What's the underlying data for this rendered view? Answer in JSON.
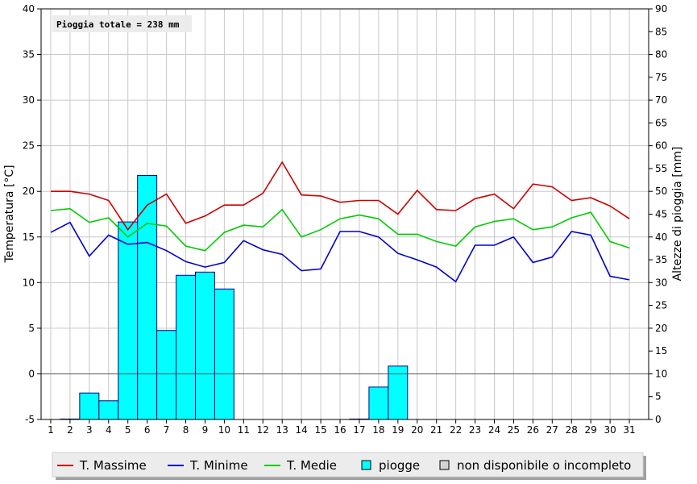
{
  "chart_data": {
    "type": "bar",
    "annotation": "Pioggia totale = 238 mm",
    "left_axis": {
      "label": "Temperatura [°C]",
      "range": [
        -5,
        40
      ],
      "ticks": [
        -5,
        0,
        5,
        10,
        15,
        20,
        25,
        30,
        35,
        40
      ]
    },
    "right_axis": {
      "label": "Altezze di pioggia [mm]",
      "range": [
        0,
        90
      ],
      "ticks": [
        0,
        5,
        10,
        15,
        20,
        25,
        30,
        35,
        40,
        45,
        50,
        55,
        60,
        65,
        70,
        75,
        80,
        85,
        90
      ]
    },
    "x": [
      1,
      2,
      3,
      4,
      5,
      6,
      7,
      8,
      9,
      10,
      11,
      12,
      13,
      14,
      15,
      16,
      17,
      18,
      19,
      20,
      21,
      22,
      23,
      24,
      25,
      26,
      27,
      28,
      29,
      30,
      31
    ],
    "grid": true,
    "legend_position": "bottom",
    "series": [
      {
        "name": "T. Massime",
        "type": "line",
        "axis": "left",
        "color": "#cc0000",
        "values": [
          20.0,
          20.0,
          19.7,
          19.0,
          15.8,
          18.5,
          19.7,
          16.5,
          17.3,
          18.5,
          18.5,
          19.8,
          23.2,
          19.6,
          19.5,
          18.8,
          19.0,
          19.0,
          17.5,
          20.1,
          18.0,
          17.9,
          19.2,
          19.7,
          18.1,
          20.8,
          20.5,
          19.0,
          19.3,
          18.4,
          17.0
        ]
      },
      {
        "name": "T. Minime",
        "type": "line",
        "axis": "left",
        "color": "#0000cc",
        "values": [
          15.5,
          16.6,
          12.9,
          15.2,
          14.2,
          14.4,
          13.5,
          12.3,
          11.7,
          12.2,
          14.6,
          13.6,
          13.1,
          11.3,
          11.5,
          15.6,
          15.6,
          15.0,
          13.2,
          12.5,
          11.7,
          10.1,
          14.1,
          14.1,
          15.0,
          12.2,
          12.8,
          15.6,
          15.2,
          10.7,
          10.3
        ]
      },
      {
        "name": "T. Medie",
        "type": "line",
        "axis": "left",
        "color": "#00cc00",
        "values": [
          17.9,
          18.1,
          16.6,
          17.1,
          15.0,
          16.5,
          16.2,
          14.0,
          13.5,
          15.5,
          16.3,
          16.1,
          18.0,
          15.0,
          15.8,
          17.0,
          17.4,
          17.0,
          15.3,
          15.3,
          14.5,
          14.0,
          16.1,
          16.7,
          17.0,
          15.8,
          16.1,
          17.1,
          17.7,
          14.5,
          13.8
        ]
      },
      {
        "name": "piogge",
        "type": "bar",
        "axis": "right",
        "color": "#00ffff",
        "values": [
          0,
          0.1,
          5.8,
          4.1,
          43.3,
          53.5,
          19.5,
          31.6,
          32.3,
          28.6,
          0,
          0,
          0,
          0,
          0,
          0,
          0.1,
          7.1,
          11.7,
          0,
          0,
          0,
          0,
          0,
          0,
          0,
          0,
          0,
          0,
          0,
          0
        ]
      }
    ],
    "legend": [
      {
        "label": "T. Massime",
        "kind": "line",
        "color": "#cc0000"
      },
      {
        "label": "T. Minime",
        "kind": "line",
        "color": "#0000cc"
      },
      {
        "label": "T. Medie",
        "kind": "line",
        "color": "#00cc00"
      },
      {
        "label": "piogge",
        "kind": "box",
        "color": "#00ffff"
      },
      {
        "label": "non disponibile o incompleto",
        "kind": "box",
        "color": "#d4d4d4"
      }
    ]
  }
}
